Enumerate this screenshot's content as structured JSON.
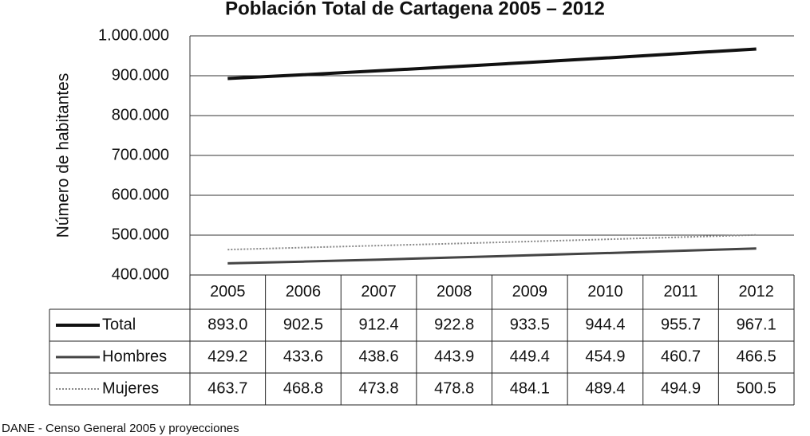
{
  "chart_data": {
    "type": "line",
    "title": "Población Total de Cartagena 2005 – 2012",
    "y_label": "Número de habitantes",
    "source": "DANE - Censo General 2005 y proyecciones",
    "categories": [
      "2005",
      "2006",
      "2007",
      "2008",
      "2009",
      "2010",
      "2011",
      "2012"
    ],
    "series": [
      {
        "name": "Total",
        "color": "#111111",
        "width": 4,
        "dash": "none",
        "values": [
          893000,
          902500,
          912400,
          922800,
          933500,
          944400,
          955700,
          967100
        ],
        "value_labels": [
          "893.0",
          "902.5",
          "912.4",
          "922.8",
          "933.5",
          "944.4",
          "955.7",
          "967.1"
        ]
      },
      {
        "name": "Hombres",
        "color": "#444444",
        "width": 3,
        "dash": "none",
        "values": [
          429200,
          433600,
          438600,
          443900,
          449400,
          454900,
          460700,
          466500
        ],
        "value_labels": [
          "429.2",
          "433.6",
          "438.6",
          "443.9",
          "449.4",
          "454.9",
          "460.7",
          "466.5"
        ]
      },
      {
        "name": "Mujeres",
        "color": "#888888",
        "width": 2,
        "dash": "2 2",
        "values": [
          463700,
          468800,
          473800,
          478800,
          484100,
          489400,
          494900,
          500500
        ],
        "value_labels": [
          "463.7",
          "468.8",
          "473.8",
          "478.8",
          "484.1",
          "489.4",
          "494.9",
          "500.5"
        ]
      }
    ],
    "ylim": [
      400000,
      1000000
    ],
    "yticks": [
      {
        "value": 400000,
        "label": "400.000"
      },
      {
        "value": 500000,
        "label": "500.000"
      },
      {
        "value": 600000,
        "label": "600.000"
      },
      {
        "value": 700000,
        "label": "700.000"
      },
      {
        "value": 800000,
        "label": "800.000"
      },
      {
        "value": 900000,
        "label": "900.000"
      },
      {
        "value": 1000000,
        "label": "1.000.000"
      }
    ],
    "grid": true
  }
}
